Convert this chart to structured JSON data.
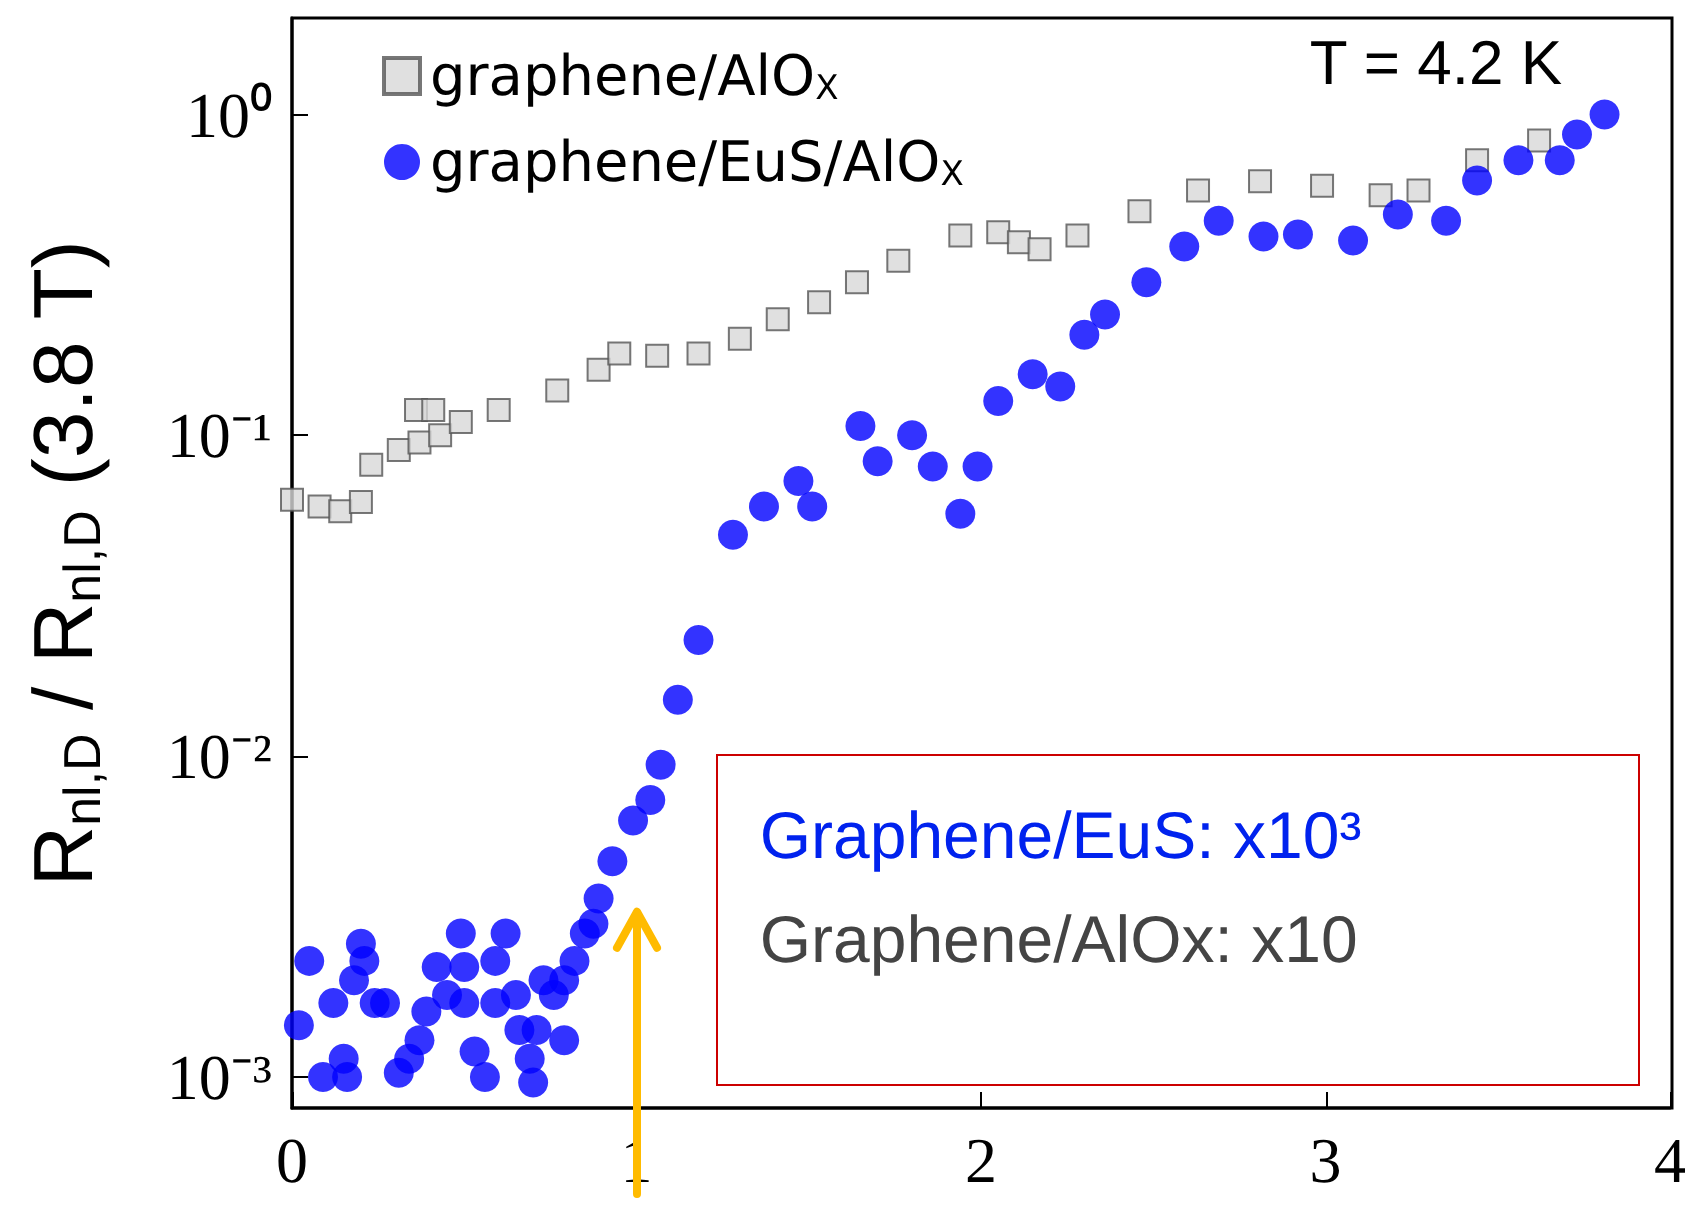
{
  "chart_data": {
    "type": "scatter",
    "ylabel": "R$_{nl,D}$ / R$_{nl,D}$ (3.8 T)",
    "annotations": [
      "T = 4.2 K",
      "Graphene/EuS: x10³",
      "Graphene/AlOx: x10"
    ],
    "log": "y",
    "legend": "top left",
    "grid": false,
    "xlim": [
      0,
      4
    ],
    "xticks": [
      0,
      1,
      2,
      3,
      4
    ],
    "ylim": [
      0.0008,
      2
    ],
    "yticks": [
      {
        "value": 0.001,
        "label": "10⁻³"
      },
      {
        "value": 0.01,
        "label": "10⁻²"
      },
      {
        "value": 0.1,
        "label": "10⁻¹"
      },
      {
        "value": 1,
        "label": "10⁰"
      }
    ],
    "series": [
      {
        "name": "graphene/AlO$_{X}$",
        "color": "#555555",
        "marker": "square",
        "x": [
          0,
          0.08,
          0.14,
          0.2,
          0.23,
          0.31,
          0.36,
          0.37,
          0.41,
          0.43,
          0.49,
          0.6,
          0.77,
          0.89,
          0.95,
          1.06,
          1.18,
          1.3,
          1.41,
          1.53,
          1.64,
          1.76,
          1.94,
          2.05,
          2.11,
          2.17,
          2.28,
          2.46,
          2.63,
          2.81,
          2.99,
          3.16,
          3.27,
          3.44,
          3.62
        ],
        "values": [
          0.063,
          0.06,
          0.058,
          0.062,
          0.081,
          0.09,
          0.12,
          0.095,
          0.12,
          0.1,
          0.11,
          0.12,
          0.138,
          0.16,
          0.18,
          0.177,
          0.18,
          0.2,
          0.23,
          0.26,
          0.3,
          0.35,
          0.42,
          0.43,
          0.4,
          0.38,
          0.42,
          0.5,
          0.58,
          0.62,
          0.6,
          0.56,
          0.58,
          0.72,
          0.83
        ]
      },
      {
        "name": "graphene/EuS/AlO$_{X}$",
        "color": "#0000ff",
        "marker": "circle",
        "x": [
          0.02,
          0.05,
          0.09,
          0.12,
          0.15,
          0.16,
          0.18,
          0.2,
          0.21,
          0.24,
          0.27,
          0.31,
          0.34,
          0.37,
          0.39,
          0.42,
          0.45,
          0.49,
          0.5,
          0.5,
          0.53,
          0.56,
          0.59,
          0.59,
          0.62,
          0.65,
          0.66,
          0.69,
          0.7,
          0.71,
          0.73,
          0.76,
          0.79,
          0.79,
          0.82,
          0.85,
          0.875,
          0.89,
          0.93,
          0.99,
          1.04,
          1.07,
          1.12,
          1.18,
          1.28,
          1.37,
          1.47,
          1.51,
          1.65,
          1.7,
          1.8,
          1.86,
          1.94,
          1.99,
          2.05,
          2.15,
          2.23,
          2.3,
          2.36,
          2.48,
          2.59,
          2.69,
          2.82,
          2.92,
          3.08,
          3.21,
          3.35,
          3.44,
          3.56,
          3.68,
          3.73,
          3.81
        ],
        "values": [
          0.00145,
          0.0023,
          0.001,
          0.0017,
          0.00114,
          0.001,
          0.002,
          0.0026,
          0.0023,
          0.0017,
          0.0017,
          0.00103,
          0.00114,
          0.0013,
          0.0016,
          0.0022,
          0.0018,
          0.0028,
          0.0022,
          0.0017,
          0.0012,
          0.001,
          0.0017,
          0.0023,
          0.0028,
          0.0018,
          0.0014,
          0.00114,
          0.00096,
          0.0014,
          0.002,
          0.0018,
          0.0013,
          0.002,
          0.0023,
          0.0028,
          0.003,
          0.0036,
          0.0047,
          0.0063,
          0.0073,
          0.0094,
          0.015,
          0.023,
          0.049,
          0.06,
          0.072,
          0.06,
          0.107,
          0.083,
          0.1,
          0.08,
          0.057,
          0.08,
          0.128,
          0.155,
          0.142,
          0.206,
          0.238,
          0.3,
          0.388,
          0.467,
          0.417,
          0.423,
          0.405,
          0.488,
          0.467,
          0.623,
          0.72,
          0.72,
          0.866,
          1.0
        ]
      }
    ]
  }
}
